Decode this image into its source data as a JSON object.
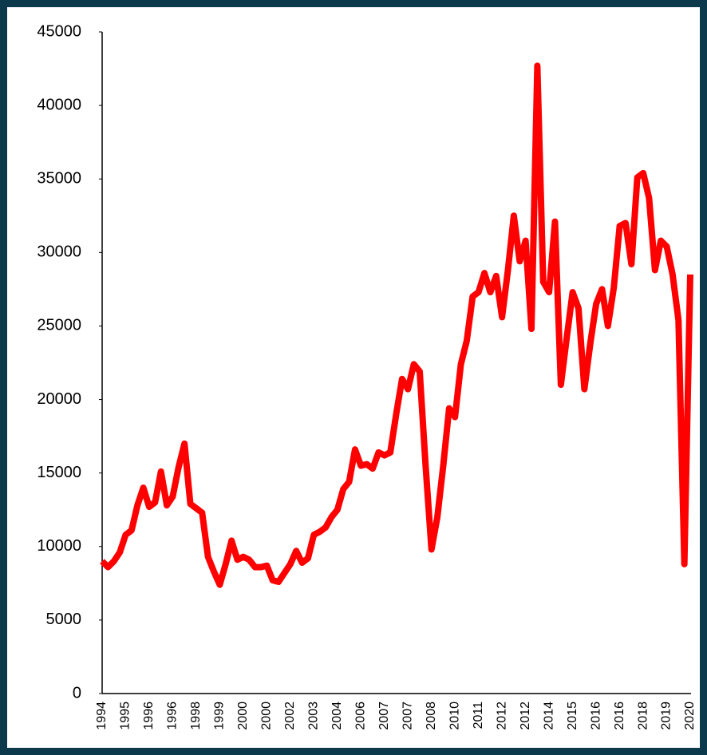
{
  "chart_data": {
    "type": "line",
    "categories": [
      "1994",
      null,
      null,
      null,
      "1995",
      null,
      null,
      null,
      "1996",
      null,
      null,
      null,
      "1996",
      null,
      null,
      null,
      "1998",
      null,
      null,
      null,
      "1999",
      null,
      null,
      null,
      "2000",
      null,
      null,
      null,
      "2000",
      null,
      null,
      null,
      "2002",
      null,
      null,
      null,
      "2003",
      null,
      null,
      null,
      "2004",
      null,
      null,
      null,
      "2006",
      null,
      null,
      null,
      "2007",
      null,
      null,
      null,
      "2007",
      null,
      null,
      null,
      "2008",
      null,
      null,
      null,
      "2010",
      null,
      null,
      null,
      "2011",
      null,
      null,
      null,
      "2012",
      null,
      null,
      null,
      "2012",
      null,
      null,
      null,
      "2014",
      null,
      null,
      null,
      "2015",
      null,
      null,
      null,
      "2016",
      null,
      null,
      null,
      "2016",
      null,
      null,
      null,
      "2018",
      null,
      null,
      null,
      "2019",
      null,
      null,
      null,
      "2020"
    ],
    "values": [
      9000,
      8600,
      9000,
      9600,
      10800,
      11100,
      12800,
      14000,
      12700,
      13000,
      15100,
      12800,
      13400,
      15400,
      17000,
      12900,
      12600,
      12300,
      9300,
      8300,
      7400,
      8800,
      10400,
      9100,
      9300,
      9100,
      8600,
      8600,
      8700,
      7700,
      7600,
      8200,
      8800,
      9700,
      8900,
      9200,
      10800,
      11000,
      11300,
      12000,
      12500,
      13900,
      14400,
      16600,
      15500,
      15600,
      15300,
      16400,
      16200,
      16400,
      19000,
      21400,
      20700,
      22400,
      21900,
      15500,
      9800,
      12000,
      15500,
      19400,
      18800,
      22400,
      24000,
      27000,
      27300,
      28600,
      27300,
      28400,
      25600,
      28800,
      32500,
      29400,
      30800,
      24800,
      42700,
      28000,
      27300,
      32100,
      21000,
      24200,
      27300,
      26200,
      20700,
      23800,
      26500,
      27500,
      25000,
      27600,
      31800,
      32000,
      29200,
      35100,
      35400,
      33700,
      28800,
      30800,
      30400,
      28500,
      25400,
      8800,
      28500
    ],
    "color": "#ff0000",
    "ylim": [
      0,
      45000
    ],
    "yticks": [
      0,
      5000,
      10000,
      15000,
      20000,
      25000,
      30000,
      35000,
      40000,
      45000
    ]
  }
}
